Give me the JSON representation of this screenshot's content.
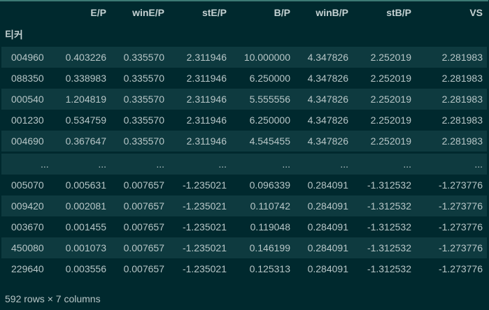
{
  "table": {
    "columns": [
      "E/P",
      "winE/P",
      "stE/P",
      "B/P",
      "winB/P",
      "stB/P",
      "VS"
    ],
    "index_name": "티커",
    "rows_top": [
      {
        "index": "004960",
        "values": [
          "0.403226",
          "0.335570",
          "2.311946",
          "10.000000",
          "4.347826",
          "2.252019",
          "2.281983"
        ]
      },
      {
        "index": "088350",
        "values": [
          "0.338983",
          "0.335570",
          "2.311946",
          "6.250000",
          "4.347826",
          "2.252019",
          "2.281983"
        ]
      },
      {
        "index": "000540",
        "values": [
          "1.204819",
          "0.335570",
          "2.311946",
          "5.555556",
          "4.347826",
          "2.252019",
          "2.281983"
        ]
      },
      {
        "index": "001230",
        "values": [
          "0.534759",
          "0.335570",
          "2.311946",
          "6.250000",
          "4.347826",
          "2.252019",
          "2.281983"
        ]
      },
      {
        "index": "004690",
        "values": [
          "0.367647",
          "0.335570",
          "2.311946",
          "4.545455",
          "4.347826",
          "2.252019",
          "2.281983"
        ]
      }
    ],
    "ellipsis": "...",
    "rows_bottom": [
      {
        "index": "005070",
        "values": [
          "0.005631",
          "0.007657",
          "-1.235021",
          "0.096339",
          "0.284091",
          "-1.312532",
          "-1.273776"
        ]
      },
      {
        "index": "009420",
        "values": [
          "0.002081",
          "0.007657",
          "-1.235021",
          "0.110742",
          "0.284091",
          "-1.312532",
          "-1.273776"
        ]
      },
      {
        "index": "003670",
        "values": [
          "0.001455",
          "0.007657",
          "-1.235021",
          "0.119048",
          "0.284091",
          "-1.312532",
          "-1.273776"
        ]
      },
      {
        "index": "450080",
        "values": [
          "0.001073",
          "0.007657",
          "-1.235021",
          "0.146199",
          "0.284091",
          "-1.312532",
          "-1.273776"
        ]
      },
      {
        "index": "229640",
        "values": [
          "0.003556",
          "0.007657",
          "-1.235021",
          "0.125313",
          "0.284091",
          "-1.312532",
          "-1.273776"
        ]
      }
    ]
  },
  "footer": {
    "shape_text": "592 rows × 7 columns"
  },
  "colors": {
    "background": "#00292e",
    "row_stripe": "#0e3a3f",
    "text": "#b7c6c7",
    "top_border": "#3c7a74"
  }
}
